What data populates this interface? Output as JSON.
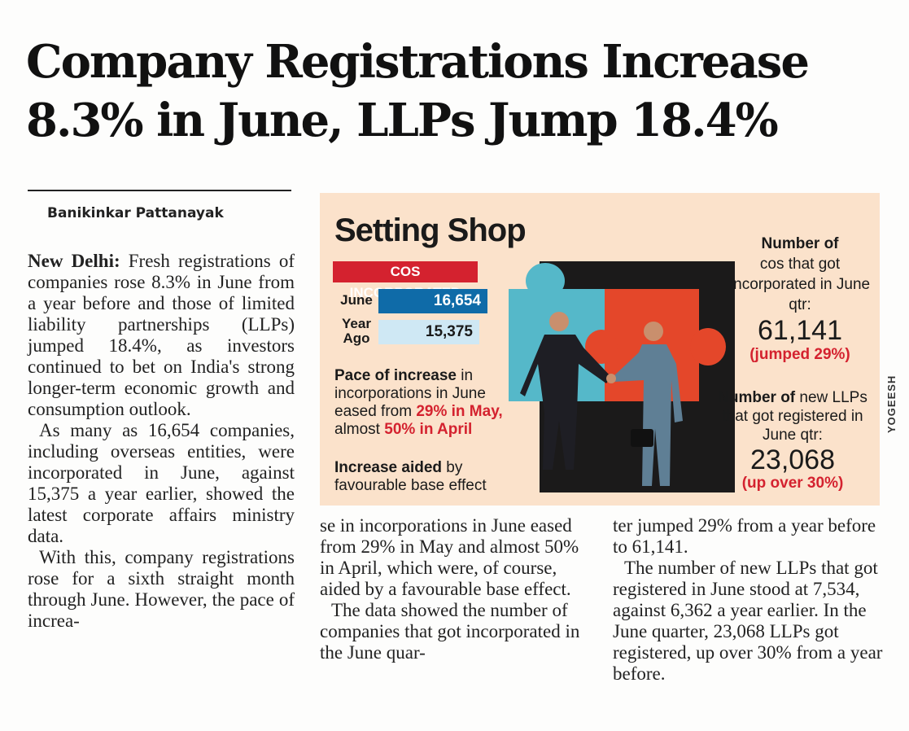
{
  "headline": {
    "line1": "Company Registrations Increase",
    "line2": "8.3% in June, LLPs Jump 18.4%"
  },
  "byline": "Banikinkar Pattanayak",
  "article": {
    "dateline": "New Delhi:",
    "col1_p1": "Fresh registrations of companies rose 8.3% in June from a year before and those of limited liability partnerships (LLPs) jumped 18.4%, as investors continued to bet on India's strong longer-term economic growth and consumption outlook.",
    "col1_p2": "As many as 16,654 companies, including overseas entities, were incorporated in June, against 15,375 a year earlier, showed the latest corporate affairs ministry data.",
    "col1_p3": "With this, company registrations rose for a sixth straight month through June. However, the pace of increa-",
    "col2_p1": "se in incorporations in June eased from 29% in May and almost 50% in April, which were, of course, aided by a favourable base effect.",
    "col2_p2": "The data showed the number of companies that got incorporated in the June quar-",
    "col3_p1": "ter jumped 29% from a year before to 61,141.",
    "col3_p2": "The number of new LLPs that got registered in June stood at 7,534, against 6,362 a year earlier. In the June quarter, 23,068 LLPs got registered, up over 30% from a year before."
  },
  "infographic": {
    "title": "Setting Shop",
    "cos_label": "COS INCORPORATED",
    "june_label": "June",
    "year_ago_label_1": "Year",
    "year_ago_label_2": "Ago",
    "pace_bold": "Pace of increase",
    "pace_rest": " in incorporations in June eased from ",
    "pace_may": "29% in May,",
    "pace_mid": " almost ",
    "pace_april": "50% in April",
    "aided_bold": "Increase aided",
    "aided_rest": " by favourable base effect",
    "qtr_bold": "Number of",
    "qtr_text": "cos that got incorporated in June qtr:",
    "qtr_value": "61,141",
    "qtr_change": "(jumped 29%)",
    "llp_bold": "Number of",
    "llp_text": " new LLPs that got registered in June qtr:",
    "llp_value": "23,068",
    "llp_change": "(up over 30%)",
    "credit": "YOGEESH",
    "colors": {
      "background": "#fbe2cb",
      "accent_red": "#d4222f",
      "bar_june": "#0f6ba8",
      "bar_ago": "#cfe8f4",
      "puzzle_blue": "#55b8c9",
      "puzzle_red": "#e4472a"
    }
  },
  "chart_data": {
    "type": "bar",
    "title": "COS INCORPORATED",
    "categories": [
      "June",
      "Year Ago"
    ],
    "values": [
      16654,
      15375
    ],
    "value_labels": [
      "16,654",
      "15,375"
    ]
  }
}
